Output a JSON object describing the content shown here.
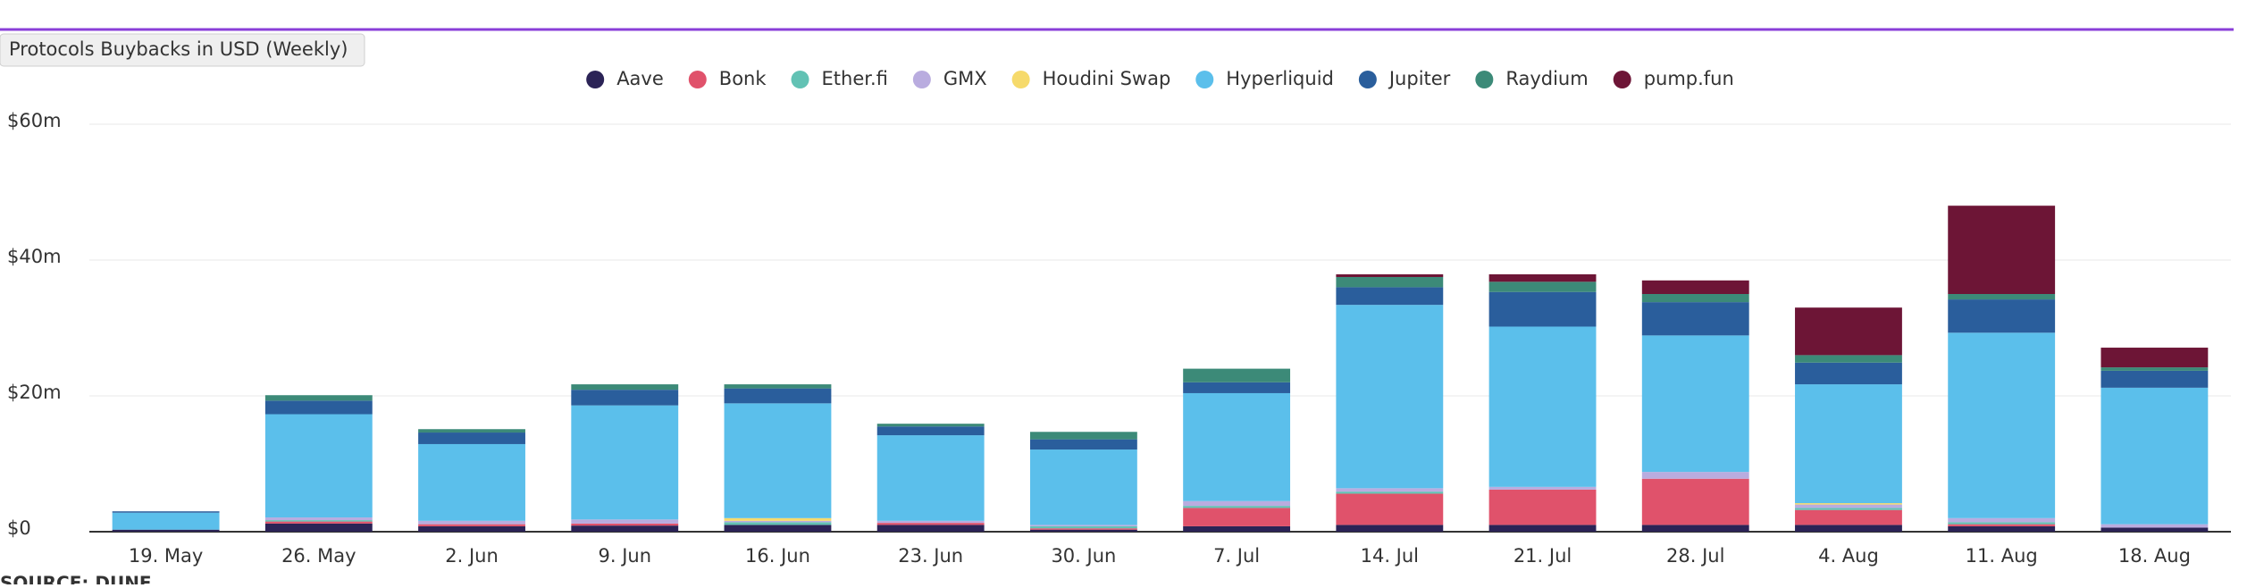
{
  "chart_data": {
    "type": "stacked_bar",
    "title": "Protocols Buybacks in USD (Weekly)",
    "source": "SOURCE: DUNE",
    "categories": [
      "19. May",
      "26. May",
      "2. Jun",
      "9. Jun",
      "16. Jun",
      "23. Jun",
      "30. Jun",
      "7. Jul",
      "14. Jul",
      "21. Jul",
      "28. Jul",
      "4. Aug",
      "11. Aug",
      "18. Aug"
    ],
    "series": [
      {
        "name": "Aave",
        "color": "#2b2356",
        "values": [
          0.3,
          1.2,
          0.8,
          0.9,
          1.0,
          1.0,
          0.3,
          0.8,
          1.0,
          1.0,
          1.0,
          1.0,
          0.8,
          0.6
        ]
      },
      {
        "name": "Bonk",
        "color": "#e0526b",
        "values": [
          0,
          0.3,
          0.3,
          0.3,
          0,
          0.3,
          0.2,
          2.7,
          4.6,
          5.2,
          6.8,
          2.2,
          0.3,
          0
        ]
      },
      {
        "name": "Ether.fi",
        "color": "#62c2b4",
        "values": [
          0,
          0.2,
          0,
          0,
          0.4,
          0,
          0.3,
          0.3,
          0.3,
          0,
          0,
          0.3,
          0.3,
          0
        ]
      },
      {
        "name": "GMX",
        "color": "#b9acdf",
        "values": [
          0,
          0.4,
          0.5,
          0.6,
          0.2,
          0.3,
          0.2,
          0.7,
          0.5,
          0.4,
          1.0,
          0.5,
          0.6,
          0.5
        ]
      },
      {
        "name": "Houdini Swap",
        "color": "#f6da6b",
        "values": [
          0,
          0,
          0,
          0,
          0.4,
          0,
          0,
          0,
          0,
          0,
          0,
          0.2,
          0,
          0
        ]
      },
      {
        "name": "Hyperliquid",
        "color": "#5bbfeb",
        "values": [
          2.5,
          15.2,
          11.3,
          16.8,
          16.9,
          12.6,
          11.1,
          15.9,
          27.0,
          23.6,
          20.1,
          17.5,
          27.3,
          20.1
        ]
      },
      {
        "name": "Jupiter",
        "color": "#2a5e9c",
        "values": [
          0.2,
          2.0,
          1.7,
          2.3,
          2.2,
          1.3,
          1.5,
          1.6,
          2.6,
          5.1,
          4.9,
          3.2,
          4.9,
          2.5
        ]
      },
      {
        "name": "Raydium",
        "color": "#3c8a78",
        "values": [
          0,
          0.8,
          0.5,
          0.8,
          0.6,
          0.4,
          1.1,
          2.0,
          1.5,
          1.5,
          1.2,
          1.1,
          0.8,
          0.5
        ]
      },
      {
        "name": "pump.fun",
        "color": "#6d1536",
        "values": [
          0,
          0,
          0,
          0,
          0,
          0,
          0,
          0,
          0.4,
          1.1,
          2.0,
          7.0,
          13.0,
          2.9
        ]
      }
    ],
    "ylim": [
      0,
      60
    ],
    "yticks": [
      {
        "value": 0,
        "label": "$0"
      },
      {
        "value": 20,
        "label": "$20m"
      },
      {
        "value": 40,
        "label": "$40m"
      },
      {
        "value": 60,
        "label": "$60m"
      }
    ],
    "grid": true
  }
}
